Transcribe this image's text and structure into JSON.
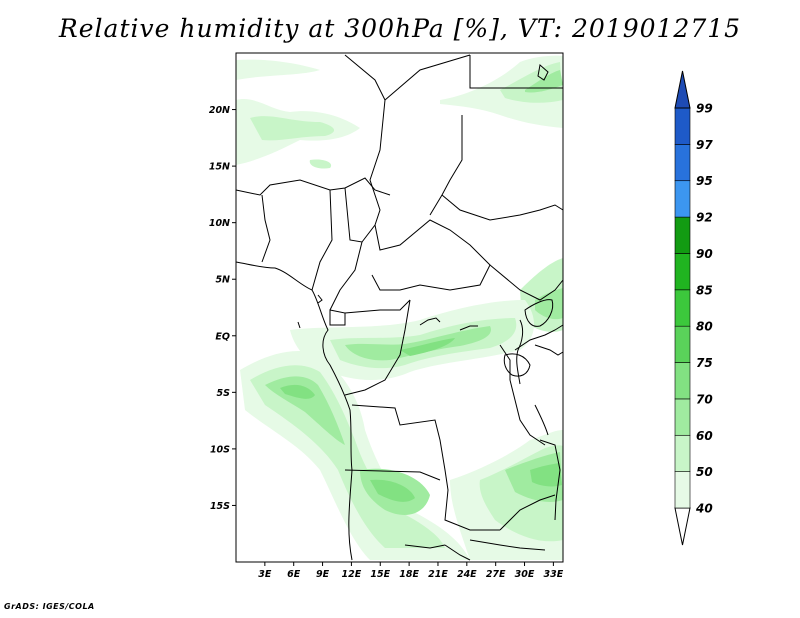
{
  "title": "Relative humidity at 300hPa [%], VT: 2019012715",
  "credit": "GrADS: IGES/COLA",
  "map": {
    "lon_range": [
      0,
      34
    ],
    "lat_range": [
      -20,
      25
    ],
    "lat_labels": [
      "20N",
      "15N",
      "10N",
      "5N",
      "EQ",
      "5S",
      "10S",
      "15S"
    ],
    "lat_values": [
      20,
      15,
      10,
      5,
      0,
      -5,
      -10,
      -15
    ],
    "lon_labels": [
      "3E",
      "6E",
      "9E",
      "12E",
      "15E",
      "18E",
      "21E",
      "24E",
      "27E",
      "30E",
      "33E"
    ],
    "lon_values": [
      3,
      6,
      9,
      12,
      15,
      18,
      21,
      24,
      27,
      30,
      33
    ],
    "land_color": "#ffffff",
    "border_color": "#000000"
  },
  "colorbar": {
    "labels": [
      "40",
      "50",
      "60",
      "70",
      "75",
      "80",
      "85",
      "90",
      "92",
      "95",
      "97",
      "99"
    ],
    "colors": [
      "#ffffff",
      "#e6fae6",
      "#c8f5c8",
      "#a0eba0",
      "#82e182",
      "#5ad25a",
      "#3cc83c",
      "#20b420",
      "#129b12",
      "#3c96f0",
      "#2872dc",
      "#1e5ac8",
      "#1e4bb4"
    ]
  }
}
